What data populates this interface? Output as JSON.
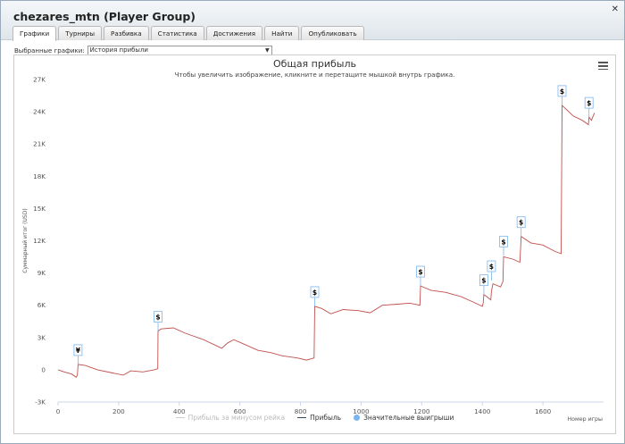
{
  "window": {
    "title": "chezares_mtn (Player Group)"
  },
  "tabs": [
    "Графики",
    "Турниры",
    "Разбивка",
    "Статистика",
    "Достижения",
    "Найти",
    "Опубликовать"
  ],
  "selector": {
    "label": "Выбранные графики:",
    "value": "История прибыли"
  },
  "chart_data": {
    "type": "line",
    "title": "Общая прибыль",
    "subtitle": "Чтобы увеличить изображение, кликните и перетащите мышкой внутрь графика.",
    "xlabel": "Номер игры",
    "ylabel": "Суммарный итог (USD)",
    "xlim": [
      0,
      1800
    ],
    "ylim": [
      -3000,
      27000
    ],
    "x_ticks": [
      "0",
      "200",
      "400",
      "600",
      "800",
      "1000",
      "1200",
      "1400",
      "1600"
    ],
    "y_ticks": [
      "27K",
      "24K",
      "21K",
      "18K",
      "15K",
      "12K",
      "9K",
      "6K",
      "3K",
      "0",
      "-3K"
    ],
    "grid": false,
    "legend_position": "bottom",
    "legend": [
      {
        "name": "Прибыль за минусом рейка",
        "color": "#cccccc",
        "kind": "line"
      },
      {
        "name": "Прибыль",
        "color": "#34495e",
        "kind": "line"
      },
      {
        "name": "Значительные выигрыши",
        "color": "#7cb5ec",
        "kind": "dot"
      }
    ],
    "series": [
      {
        "name": "Прибыль",
        "color": "#c0504d",
        "points": [
          [
            0,
            0
          ],
          [
            20,
            -200
          ],
          [
            45,
            -400
          ],
          [
            60,
            -700
          ],
          [
            64,
            -500
          ],
          [
            66,
            500
          ],
          [
            90,
            400
          ],
          [
            130,
            0
          ],
          [
            180,
            -300
          ],
          [
            215,
            -500
          ],
          [
            240,
            -100
          ],
          [
            280,
            -200
          ],
          [
            318,
            0
          ],
          [
            329,
            100
          ],
          [
            330,
            3600
          ],
          [
            340,
            3800
          ],
          [
            380,
            3900
          ],
          [
            420,
            3400
          ],
          [
            480,
            2800
          ],
          [
            540,
            2000
          ],
          [
            560,
            2500
          ],
          [
            580,
            2800
          ],
          [
            620,
            2300
          ],
          [
            660,
            1800
          ],
          [
            700,
            1600
          ],
          [
            740,
            1300
          ],
          [
            790,
            1100
          ],
          [
            820,
            900
          ],
          [
            845,
            1100
          ],
          [
            847,
            5900
          ],
          [
            870,
            5700
          ],
          [
            900,
            5200
          ],
          [
            940,
            5600
          ],
          [
            990,
            5500
          ],
          [
            1030,
            5300
          ],
          [
            1070,
            6000
          ],
          [
            1120,
            6100
          ],
          [
            1160,
            6200
          ],
          [
            1194,
            6000
          ],
          [
            1196,
            7800
          ],
          [
            1230,
            7400
          ],
          [
            1280,
            7200
          ],
          [
            1330,
            6800
          ],
          [
            1370,
            6300
          ],
          [
            1400,
            5900
          ],
          [
            1403,
            6200
          ],
          [
            1405,
            7000
          ],
          [
            1415,
            6800
          ],
          [
            1428,
            6500
          ],
          [
            1430,
            7300
          ],
          [
            1435,
            8000
          ],
          [
            1460,
            7700
          ],
          [
            1468,
            8200
          ],
          [
            1470,
            10500
          ],
          [
            1500,
            10300
          ],
          [
            1524,
            10000
          ],
          [
            1528,
            12400
          ],
          [
            1560,
            11800
          ],
          [
            1600,
            11600
          ],
          [
            1640,
            11000
          ],
          [
            1660,
            10800
          ],
          [
            1663,
            24600
          ],
          [
            1700,
            23600
          ],
          [
            1730,
            23200
          ],
          [
            1750,
            22800
          ],
          [
            1752,
            23500
          ],
          [
            1760,
            23200
          ],
          [
            1770,
            23900
          ]
        ]
      }
    ],
    "big_wins": [
      {
        "x": 66,
        "y": 500,
        "label": "¥"
      },
      {
        "x": 330,
        "y": 3600,
        "label": "$"
      },
      {
        "x": 847,
        "y": 5900,
        "label": "$"
      },
      {
        "x": 1196,
        "y": 7800,
        "label": "$"
      },
      {
        "x": 1405,
        "y": 7000,
        "label": "$"
      },
      {
        "x": 1430,
        "y": 8300,
        "label": "$"
      },
      {
        "x": 1470,
        "y": 10600,
        "label": "$"
      },
      {
        "x": 1528,
        "y": 12400,
        "label": "$"
      },
      {
        "x": 1663,
        "y": 24600,
        "label": "$"
      },
      {
        "x": 1752,
        "y": 23500,
        "label": "$"
      }
    ]
  }
}
